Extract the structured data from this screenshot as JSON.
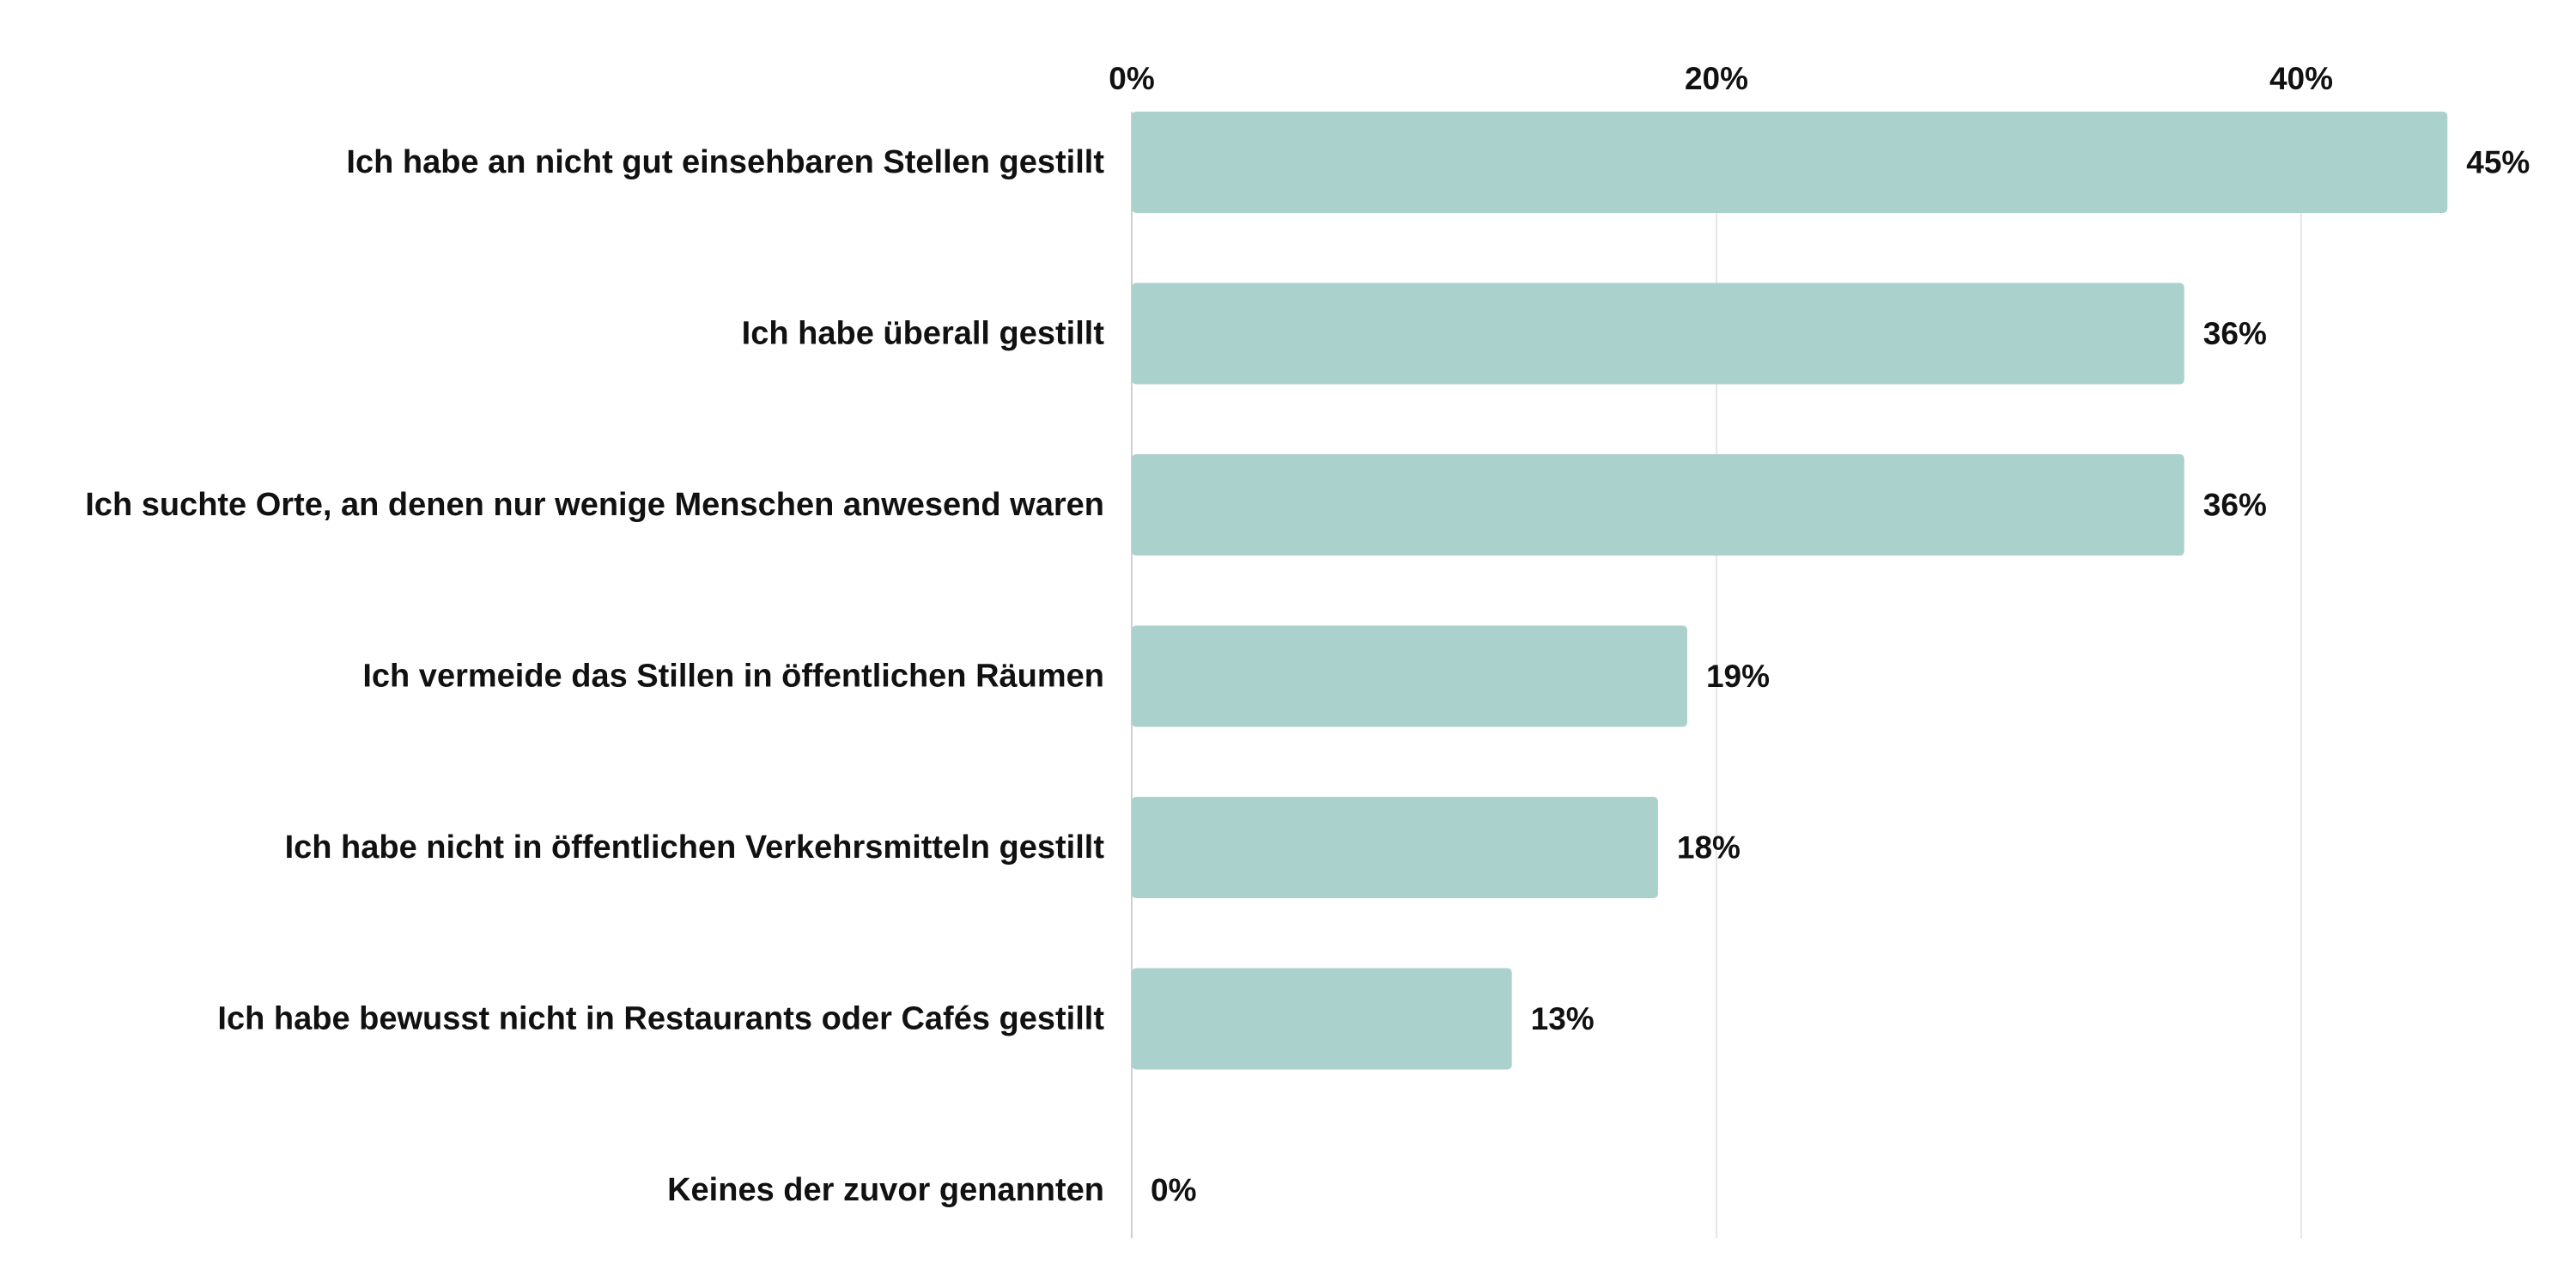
{
  "chart_data": {
    "type": "bar",
    "orientation": "horizontal",
    "categories": [
      "Ich habe an nicht gut einsehbaren Stellen gestillt",
      "Ich habe überall gestillt",
      "Ich suchte Orte, an denen nur wenige Menschen anwesend waren",
      "Ich vermeide das Stillen in öffentlichen Räumen",
      "Ich habe nicht in öffentlichen Verkehrsmitteln gestillt",
      "Ich habe bewusst nicht in Restaurants oder Cafés gestillt",
      "Keines der zuvor genannten"
    ],
    "values": [
      45,
      36,
      36,
      19,
      18,
      13,
      0
    ],
    "value_labels": [
      "45%",
      "36%",
      "36%",
      "19%",
      "18%",
      "13%",
      "0%"
    ],
    "xticks": [
      0,
      20,
      40
    ],
    "xtick_labels": [
      "0%",
      "20%",
      "40%"
    ],
    "xlim": [
      0,
      45
    ],
    "tick_position": "top",
    "grid": true,
    "bar_color": "#abd1cd",
    "grid_color": "#e6e6e6",
    "axis_color": "#cfcfcf",
    "text_color": "#111111"
  }
}
